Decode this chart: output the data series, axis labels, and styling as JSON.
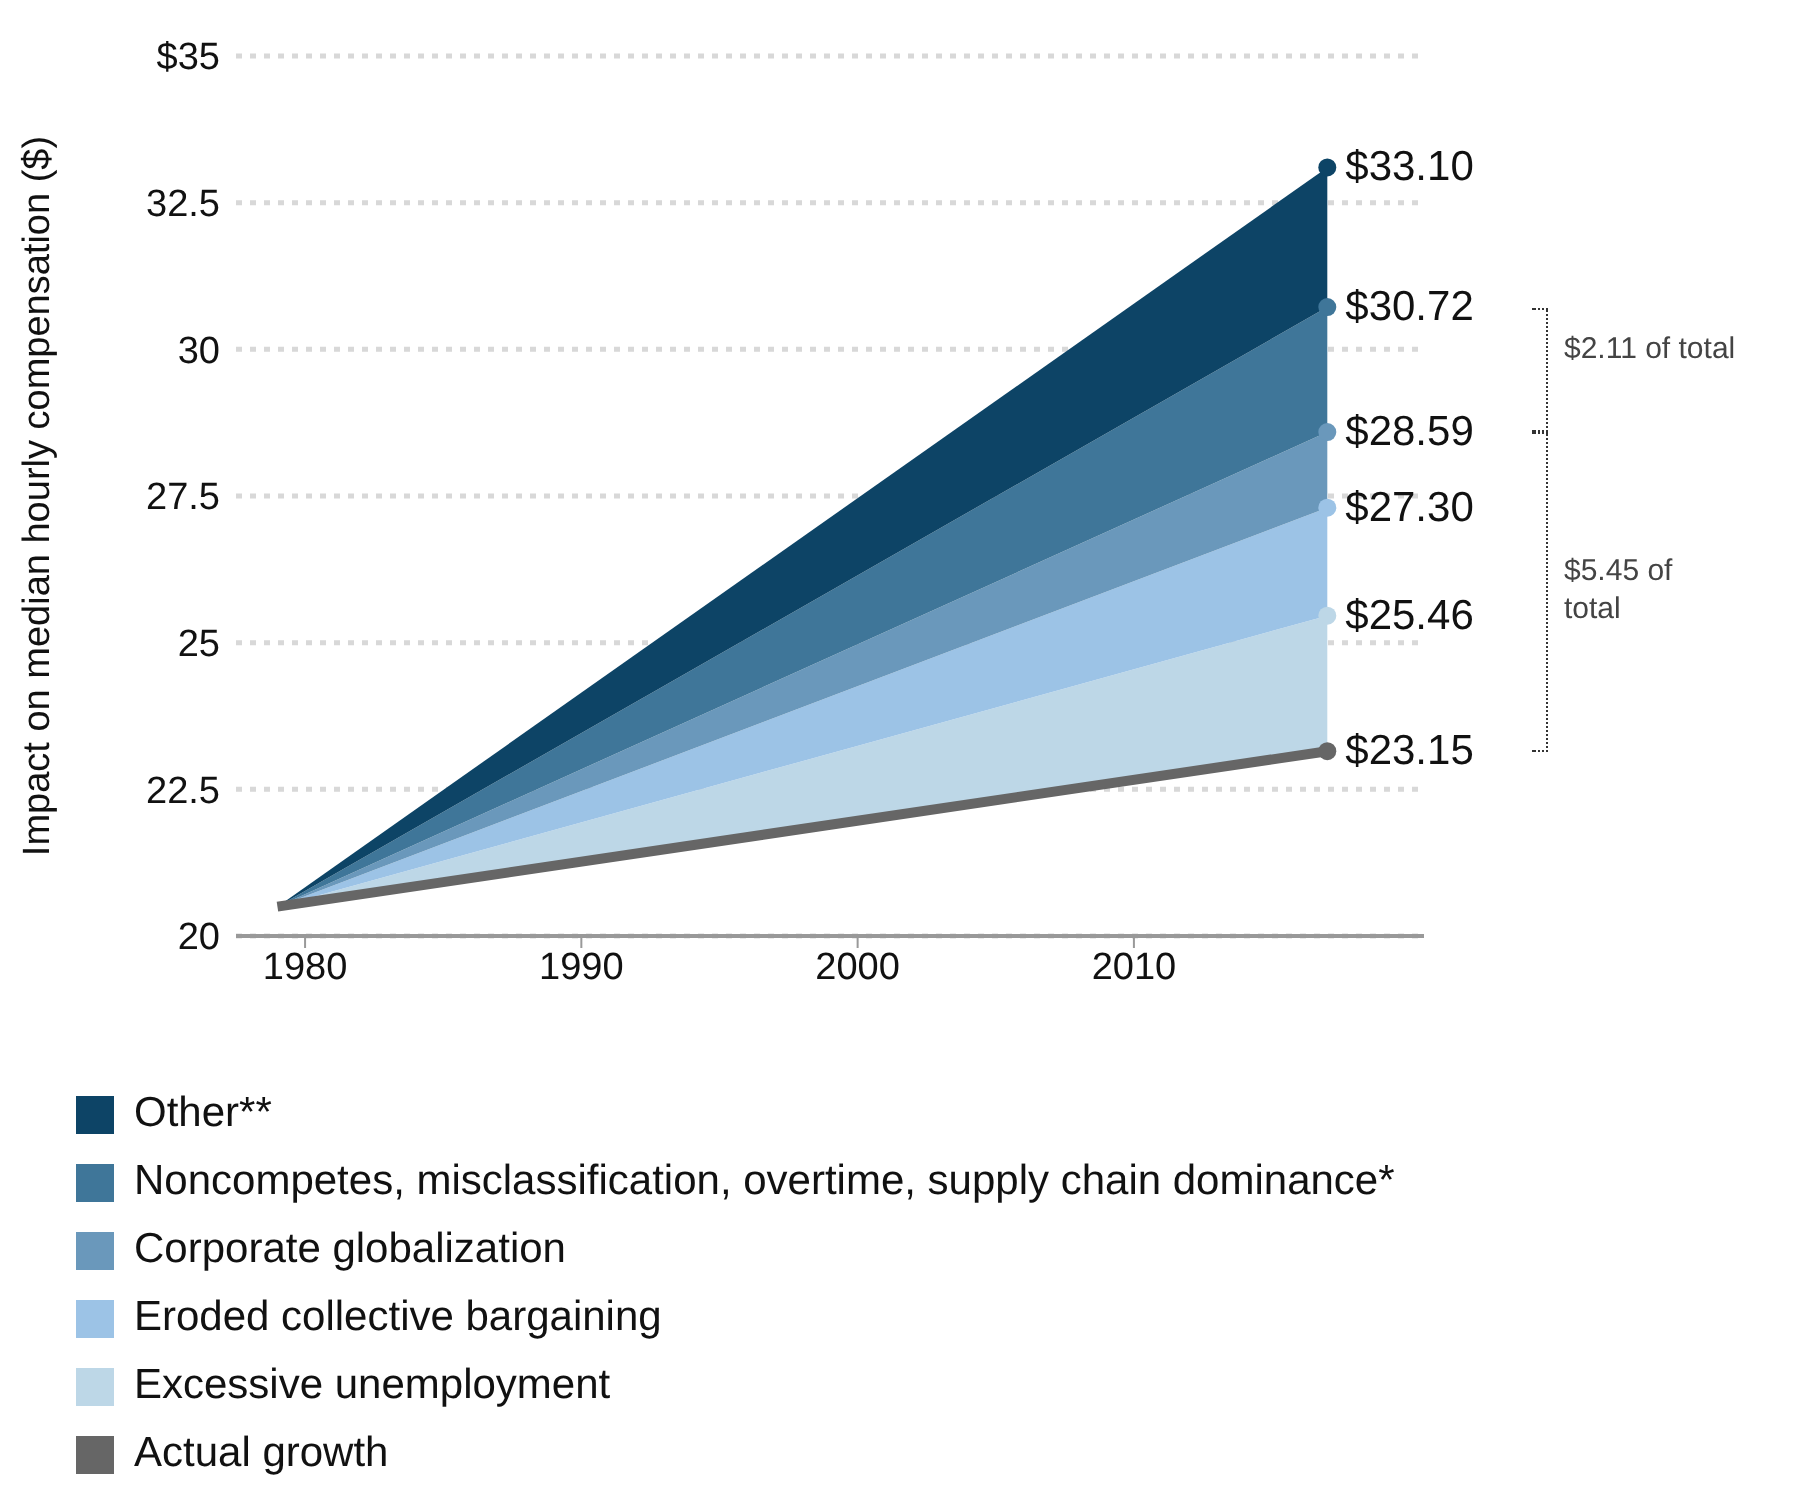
{
  "chart_data": {
    "type": "area",
    "ylabel": "Impact on median hourly compensation ($)",
    "x": [
      1979,
      2017
    ],
    "xlim": [
      1977.5,
      2020.5
    ],
    "xticks": [
      1980,
      1990,
      2000,
      2010
    ],
    "ylim": [
      20,
      35
    ],
    "yticks": [
      20,
      22.5,
      25,
      27.5,
      30,
      32.5,
      {
        "value": 35,
        "label": "$35"
      }
    ],
    "grid": "y",
    "legend": "bottom",
    "series": [
      {
        "name": "Actual growth",
        "type": "line",
        "color": "#666666",
        "values": [
          20.5,
          23.15
        ],
        "value_labels": [
          null,
          "$23.15"
        ]
      },
      {
        "name": "Excessive unemployment",
        "color": "#bdd7e7",
        "values": [
          20.5,
          25.46
        ],
        "value_labels": [
          null,
          "$25.46"
        ]
      },
      {
        "name": "Eroded collective bargaining",
        "color": "#9cc3e6",
        "values": [
          20.5,
          27.3
        ],
        "value_labels": [
          null,
          "$27.30"
        ]
      },
      {
        "name": "Corporate globalization",
        "color": "#6a98bb",
        "values": [
          20.5,
          28.59
        ],
        "value_labels": [
          null,
          "$28.59"
        ]
      },
      {
        "name": "Noncompetes, misclassification, overtime, supply chain dominance*",
        "color": "#3f7699",
        "values": [
          20.5,
          30.72
        ],
        "value_labels": [
          null,
          "$30.72"
        ]
      },
      {
        "name": "Other**",
        "color": "#0d4466",
        "values": [
          20.5,
          33.1
        ],
        "value_labels": [
          null,
          "$33.10"
        ]
      }
    ],
    "annotations": [
      "$2.11 of total",
      "$5.45 of total"
    ]
  }
}
